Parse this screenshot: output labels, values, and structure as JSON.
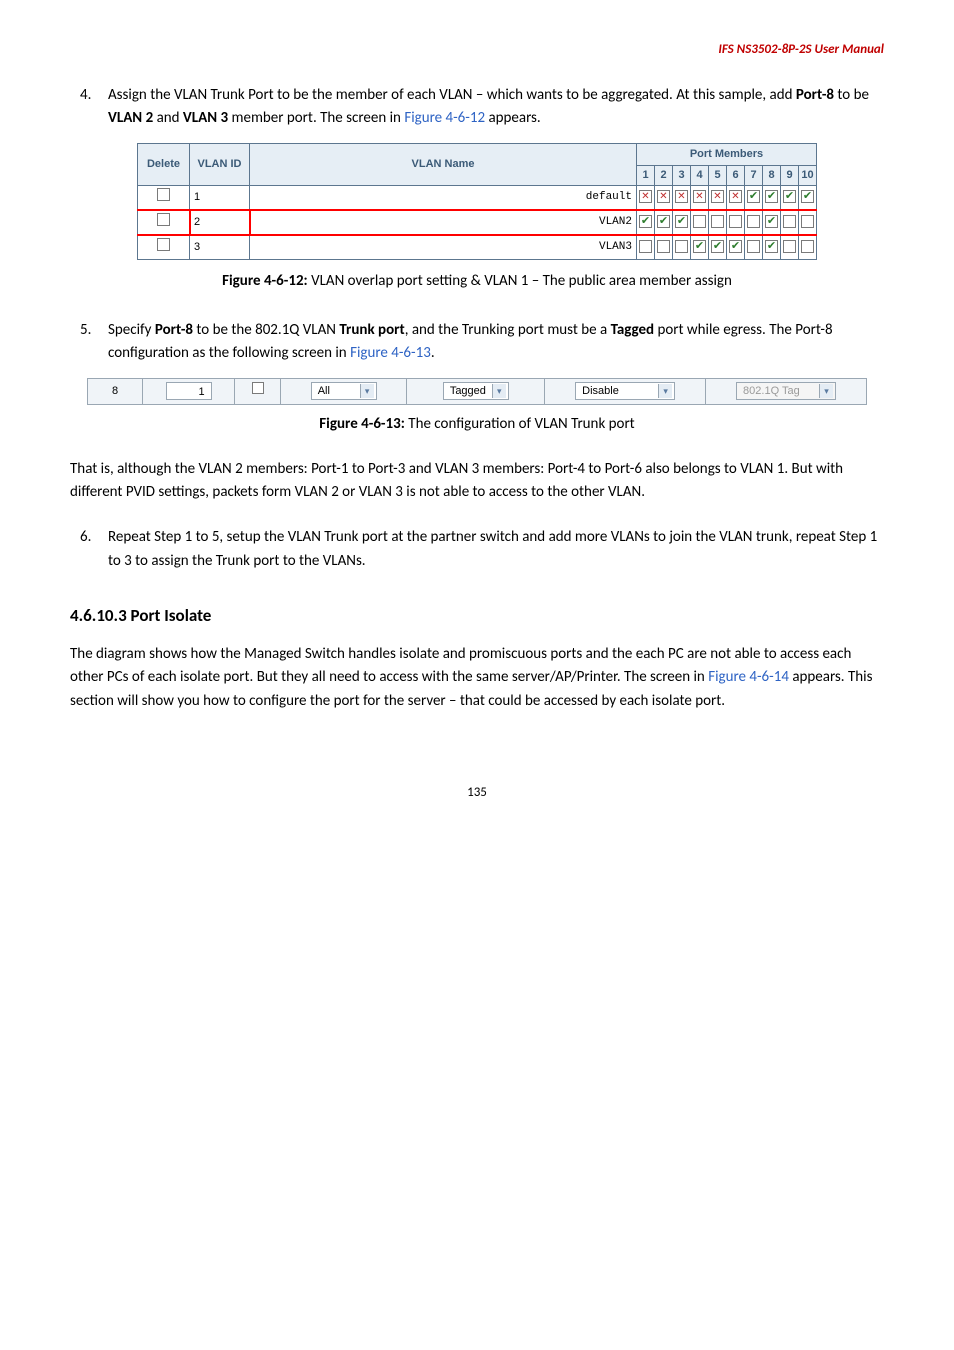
{
  "header": {
    "product": "IFS NS3502-8P-2S  User Manual"
  },
  "step4": {
    "num": "4.",
    "text_a": "Assign the VLAN Trunk Port to be the member of each VLAN – which wants to be aggregated. At this sample, add ",
    "b1": "Port-8",
    "t1": " to be ",
    "b2": "VLAN 2",
    "t2": " and ",
    "b3": "VLAN 3",
    "t3": " member port. The screen in ",
    "link": "Figure 4-6-12",
    "t4": " appears."
  },
  "vlan_table": {
    "headers": {
      "delete": "Delete",
      "vlan_id": "VLAN ID",
      "vlan_name": "VLAN Name",
      "port_members": "Port Members",
      "ports": [
        "1",
        "2",
        "3",
        "4",
        "5",
        "6",
        "7",
        "8",
        "9",
        "10"
      ]
    },
    "rows": [
      {
        "delete": false,
        "id": "1",
        "name": "default",
        "cells": [
          "x",
          "x",
          "x",
          "x",
          "x",
          "x",
          "c",
          "c",
          "c",
          "c"
        ]
      },
      {
        "delete": false,
        "id": "2",
        "name": "VLAN2",
        "highlight": true,
        "cells": [
          "c",
          "c",
          "c",
          "e",
          "e",
          "e",
          "e",
          "c",
          "e",
          "e"
        ]
      },
      {
        "delete": false,
        "id": "3",
        "name": "VLAN3",
        "cells": [
          "e",
          "e",
          "e",
          "c",
          "c",
          "c",
          "e",
          "c",
          "e",
          "e"
        ]
      }
    ]
  },
  "fig12": {
    "bold": "Figure 4-6-12:",
    "rest": " VLAN overlap port setting & VLAN 1 – The public area member assign"
  },
  "step5": {
    "num": "5.",
    "t1": "Specify ",
    "b1": "Port-8",
    "t2": " to be the 802.1Q VLAN ",
    "b2": "Trunk port",
    "t3": ", and the Trunking port must be a ",
    "b3": "Tagged",
    "t4": " port while egress. The Port-8 configuration as the following screen in ",
    "link": "Figure 4-6-13",
    "t5": "."
  },
  "trunk_row": {
    "port": "8",
    "pvid": "1",
    "checkbox": false,
    "frame_type": "All",
    "egress": "Tagged",
    "ingress": "Disable",
    "qtag": "802.1Q Tag"
  },
  "fig13": {
    "bold": "Figure 4-6-13:",
    "rest": " The configuration of VLAN Trunk port"
  },
  "para_after": "That is, although the VLAN 2 members: Port-1 to Port-3 and VLAN 3 members: Port-4 to Port-6 also belongs to VLAN 1. But with different PVID settings, packets form VLAN 2 or VLAN 3 is not able to access to the other VLAN.",
  "step6": {
    "num": "6.",
    "text": "Repeat Step 1 to 5, setup the VLAN Trunk port at the partner switch and add more VLANs to join the VLAN trunk, repeat Step 1 to 3 to assign the Trunk port to the VLANs."
  },
  "section_heading": "4.6.10.3 Port Isolate",
  "isolate_para": {
    "t1": "The diagram shows how the Managed Switch handles isolate and promiscuous ports and the each PC are not able to access each other PCs of each isolate port. But they all need to access with the same server/AP/Printer. The screen in ",
    "link": "Figure 4-6-14",
    "t2": " appears. This section will show you how to configure the port for the server – that could be accessed by each isolate port."
  },
  "page_number": "135"
}
